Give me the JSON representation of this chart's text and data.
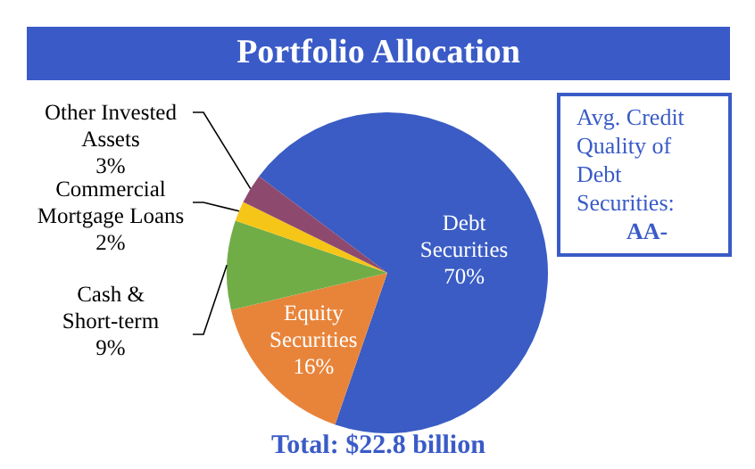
{
  "chart_data": {
    "type": "pie",
    "title": "Portfolio Allocation",
    "categories": [
      "Debt Securities",
      "Equity Securities",
      "Cash & Short-term",
      "Commercial Mortgage Loans",
      "Other Invested Assets"
    ],
    "values": [
      70,
      16,
      9,
      2,
      3
    ],
    "colors": [
      "#3a5cc4",
      "#e8843a",
      "#70ad47",
      "#f5c518",
      "#8e4a6e"
    ],
    "value_labels": [
      "70%",
      "16%",
      "9%",
      "2%",
      "3%"
    ],
    "annotations": [
      "Total: $22.8 billion",
      "Avg. Credit Quality of Debt Securities:",
      "AA-"
    ]
  }
}
